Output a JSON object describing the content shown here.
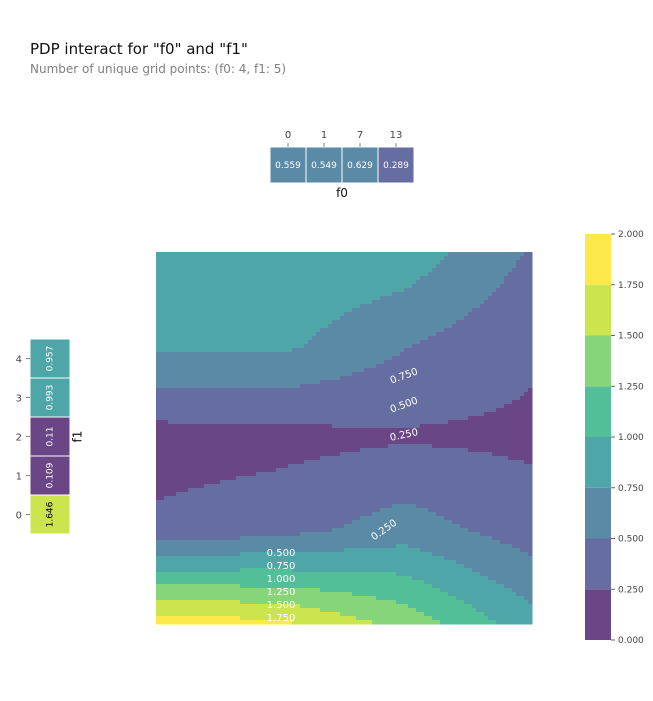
{
  "title": "PDP interact for \"f0\" and \"f1\"",
  "subtitle": "Number of unique grid points: (f0: 4, f1: 5)",
  "chart_data": [
    {
      "type": "heatmap",
      "name": "f0 marginal",
      "xlabel": "f0",
      "categories": [
        "0",
        "1",
        "7",
        "13"
      ],
      "values": [
        0.559,
        0.549,
        0.629,
        0.289
      ],
      "labels": [
        "0.559",
        "0.549",
        "0.629",
        "0.289"
      ]
    },
    {
      "type": "heatmap",
      "name": "f1 marginal",
      "ylabel": "f1",
      "categories": [
        "0",
        "1",
        "2",
        "3",
        "4"
      ],
      "values": [
        1.646,
        0.109,
        0.11,
        0.993,
        0.957
      ],
      "labels": [
        "1.646",
        "0.109",
        "0.11",
        "0.993",
        "0.957"
      ]
    },
    {
      "type": "contour",
      "name": "interaction",
      "x": [
        0,
        1,
        7,
        13
      ],
      "y": [
        0,
        1,
        2,
        3,
        4
      ],
      "z": [
        [
          1.88,
          1.78,
          1.4,
          0.85
        ],
        [
          0.3,
          0.4,
          0.62,
          0.37
        ],
        [
          0.14,
          0.17,
          0.22,
          0.2
        ],
        [
          0.8,
          0.81,
          0.52,
          0.3
        ],
        [
          0.99,
          0.97,
          0.91,
          0.48
        ]
      ],
      "levels": [
        0,
        0.25,
        0.5,
        0.75,
        1.0,
        1.25,
        1.5,
        1.75,
        2.0
      ],
      "contour_labels": [
        "0.250",
        "0.500",
        "0.750",
        "0.250",
        "0.500",
        "0.750",
        "1.000",
        "1.250",
        "1.500",
        "1.750"
      ]
    },
    {
      "type": "colorbar",
      "range": [
        0,
        2
      ],
      "ticks": [
        "0.000",
        "0.250",
        "0.500",
        "0.750",
        "1.000",
        "1.250",
        "1.500",
        "1.750",
        "2.000"
      ],
      "colors": [
        "#6b4687",
        "#666da0",
        "#5a8aa6",
        "#4ea6a8",
        "#53bf98",
        "#87d57b",
        "#cce44d",
        "#fde84a"
      ]
    }
  ]
}
